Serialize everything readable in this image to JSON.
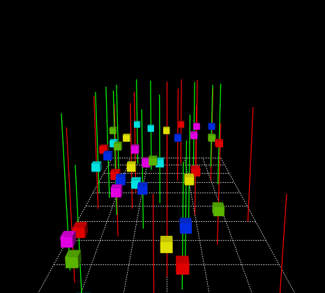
{
  "chart_data": {
    "type": "scatter3d",
    "xlim": [
      -12,
      12
    ],
    "ylim": [
      0,
      50
    ],
    "zlim": [
      0,
      20
    ],
    "xticks": [
      -12,
      -8,
      -4,
      0,
      4,
      8,
      12
    ],
    "yticks": [
      0,
      5,
      10,
      15,
      20,
      25,
      30,
      35,
      40,
      45,
      50
    ],
    "grid": true,
    "tick_labels": false,
    "cubes": {
      "x": [
        -7,
        -1,
        1,
        9,
        1.5,
        0,
        2,
        -9,
        -10,
        -9,
        6,
        -3,
        -4,
        -6,
        -6,
        3,
        4,
        -1,
        -3,
        -2,
        -5,
        -7,
        -10,
        -9,
        -10,
        -5,
        -8,
        -9,
        -7,
        2,
        5,
        8,
        9,
        0,
        -3,
        6,
        9,
        -10,
        3,
        -6
      ],
      "y": [
        2,
        1,
        2,
        1,
        6,
        8,
        10,
        7,
        9,
        10,
        14,
        18,
        20,
        16,
        20,
        20,
        22,
        26,
        26,
        26,
        24,
        22,
        24,
        28,
        30,
        30,
        32,
        34,
        36,
        36,
        38,
        36,
        34,
        40,
        42,
        44,
        44,
        40,
        46,
        46
      ],
      "z": [
        1,
        0.3,
        0.3,
        0.2,
        2,
        3,
        4,
        2,
        3,
        3.5,
        4,
        5,
        5,
        5.5,
        5.5,
        5.5,
        6,
        6,
        6,
        6.3,
        6,
        5.5,
        6,
        6.5,
        7,
        7,
        7,
        7,
        7.5,
        7.5,
        7.5,
        7.5,
        7,
        8,
        8,
        8,
        8,
        8,
        8,
        8
      ],
      "colors": [
        "#00ffff",
        "#0033ff",
        "#ff0000",
        "#0033ff",
        "#ff0000",
        "#ffff00",
        "#0033ff",
        "#66cc00",
        "#ff00ff",
        "#ff0000",
        "#66cc00",
        "#0033ff",
        "#00ffff",
        "#ff00ff",
        "#0033ff",
        "#ffff00",
        "#ff0000",
        "#00ffff",
        "#ff00ff",
        "#66cc00",
        "#ffff00",
        "#ff0000",
        "#00ffff",
        "#0033ff",
        "#ff0000",
        "#ff00ff",
        "#66cc00",
        "#00ffff",
        "#ffff00",
        "#0033ff",
        "#ff00ff",
        "#66cc00",
        "#ff0000",
        "#ffff00",
        "#00ffff",
        "#ff00ff",
        "#0033ff",
        "#66cc00",
        "#ff0000",
        "#00ffff"
      ]
    },
    "stems": {
      "x": [
        -7,
        -1,
        1.5,
        9,
        0,
        2,
        -9,
        -10,
        6,
        -3,
        -6,
        3,
        4,
        -1,
        -5,
        -7,
        -10,
        -9,
        -5,
        -8,
        2,
        5,
        8,
        9,
        0,
        -3,
        6,
        9,
        3,
        -6,
        11,
        -11
      ],
      "y": [
        2,
        1,
        6,
        1,
        8,
        10,
        7,
        9,
        14,
        18,
        16,
        20,
        22,
        26,
        24,
        22,
        24,
        28,
        30,
        32,
        36,
        38,
        36,
        34,
        40,
        42,
        44,
        44,
        46,
        46,
        20,
        30
      ],
      "top": [
        14,
        12,
        13,
        12,
        15,
        14,
        16,
        17,
        15,
        16,
        17,
        15,
        16,
        17,
        16,
        18,
        17,
        18,
        17,
        18,
        17,
        18,
        17,
        18,
        18,
        18,
        18,
        17,
        18,
        18,
        16,
        17
      ],
      "colors": [
        "#00ff00",
        "#ff0000",
        "#00ff00",
        "#ff0000",
        "#ff0000",
        "#00ff00",
        "#ff0000",
        "#00ff00",
        "#ff0000",
        "#00ff00",
        "#ff0000",
        "#00ff00",
        "#ff0000",
        "#00ff00",
        "#ff0000",
        "#00ff00",
        "#ff0000",
        "#00ff00",
        "#ff0000",
        "#00ff00",
        "#ff0000",
        "#00ff00",
        "#ff0000",
        "#00ff00",
        "#ff0000",
        "#00ff00",
        "#ff0000",
        "#00ff00",
        "#ff0000",
        "#00ff00",
        "#ff0000",
        "#00ff00"
      ]
    }
  }
}
